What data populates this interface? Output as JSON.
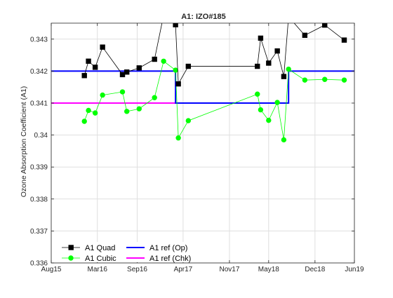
{
  "chart_data": {
    "type": "line",
    "title": "A1: IZO#185",
    "xlabel": "",
    "ylabel": "Ozone Absorption Coefficient (A1)",
    "x_axis_kind": "date",
    "xlim": [
      "2015-08-01",
      "2019-06-01"
    ],
    "ylim": [
      0.336,
      0.3435
    ],
    "x_ticks": [
      {
        "date": "2015-08-01",
        "label": "Aug15"
      },
      {
        "date": "2016-03-01",
        "label": "Mar16"
      },
      {
        "date": "2016-09-01",
        "label": "Sep16"
      },
      {
        "date": "2017-04-01",
        "label": "Apr17"
      },
      {
        "date": "2017-11-01",
        "label": "Nov17"
      },
      {
        "date": "2018-05-01",
        "label": "May18"
      },
      {
        "date": "2018-12-01",
        "label": "Dec18"
      },
      {
        "date": "2019-06-01",
        "label": "Jun19"
      }
    ],
    "y_ticks": [
      {
        "value": 0.336,
        "label": "0.336"
      },
      {
        "value": 0.337,
        "label": "0.337"
      },
      {
        "value": 0.338,
        "label": "0.338"
      },
      {
        "value": 0.339,
        "label": "0.339"
      },
      {
        "value": 0.34,
        "label": "0.34"
      },
      {
        "value": 0.341,
        "label": "0.341"
      },
      {
        "value": 0.342,
        "label": "0.342"
      },
      {
        "value": 0.343,
        "label": "0.343"
      }
    ],
    "grid": true,
    "legend_position": "bottom-left",
    "series": [
      {
        "name": "A1 Quad",
        "color": "#000000",
        "marker": "square",
        "line_width": 0.8,
        "points": [
          {
            "x": "2016-01-01",
            "y": 0.34186
          },
          {
            "x": "2016-01-20",
            "y": 0.34231
          },
          {
            "x": "2016-02-20",
            "y": 0.34212
          },
          {
            "x": "2016-03-25",
            "y": 0.34275
          },
          {
            "x": "2016-06-25",
            "y": 0.34189
          },
          {
            "x": "2016-07-15",
            "y": 0.34197
          },
          {
            "x": "2016-09-10",
            "y": 0.3421
          },
          {
            "x": "2016-11-20",
            "y": 0.34237
          },
          {
            "x": "2017-01-01",
            "y": 0.34375
          },
          {
            "x": "2017-02-25",
            "y": 0.34345
          },
          {
            "x": "2017-03-10",
            "y": 0.3416
          },
          {
            "x": "2017-04-25",
            "y": 0.34215
          },
          {
            "x": "2018-03-10",
            "y": 0.34215
          },
          {
            "x": "2018-03-25",
            "y": 0.34303
          },
          {
            "x": "2018-05-01",
            "y": 0.34225
          },
          {
            "x": "2018-06-10",
            "y": 0.34263
          },
          {
            "x": "2018-07-10",
            "y": 0.34183
          },
          {
            "x": "2018-08-01",
            "y": 0.3437
          },
          {
            "x": "2018-10-15",
            "y": 0.34312
          },
          {
            "x": "2019-01-15",
            "y": 0.34344
          },
          {
            "x": "2019-04-15",
            "y": 0.34297
          }
        ]
      },
      {
        "name": "A1 Cubic",
        "color": "#00ff00",
        "marker": "circle",
        "line_width": 0.8,
        "points": [
          {
            "x": "2016-01-01",
            "y": 0.34043
          },
          {
            "x": "2016-01-20",
            "y": 0.34077
          },
          {
            "x": "2016-02-20",
            "y": 0.34069
          },
          {
            "x": "2016-03-25",
            "y": 0.34125
          },
          {
            "x": "2016-06-25",
            "y": 0.34135
          },
          {
            "x": "2016-07-15",
            "y": 0.34074
          },
          {
            "x": "2016-09-10",
            "y": 0.34082
          },
          {
            "x": "2016-11-20",
            "y": 0.34117
          },
          {
            "x": "2017-01-01",
            "y": 0.34231
          },
          {
            "x": "2017-02-25",
            "y": 0.34203
          },
          {
            "x": "2017-03-10",
            "y": 0.33991
          },
          {
            "x": "2017-04-25",
            "y": 0.34045
          },
          {
            "x": "2018-03-10",
            "y": 0.34128
          },
          {
            "x": "2018-03-25",
            "y": 0.34079
          },
          {
            "x": "2018-05-01",
            "y": 0.34046
          },
          {
            "x": "2018-06-10",
            "y": 0.34102
          },
          {
            "x": "2018-07-10",
            "y": 0.33985
          },
          {
            "x": "2018-08-01",
            "y": 0.34206
          },
          {
            "x": "2018-10-15",
            "y": 0.34172
          },
          {
            "x": "2019-01-15",
            "y": 0.34174
          },
          {
            "x": "2019-04-15",
            "y": 0.34172
          }
        ]
      },
      {
        "name": "A1 ref (Op)",
        "color": "#0000ff",
        "marker": "none",
        "line_width": 2,
        "step": true,
        "points": [
          {
            "x": "2015-08-01",
            "y": 0.342
          },
          {
            "x": "2017-02-25",
            "y": 0.342
          },
          {
            "x": "2017-02-25",
            "y": 0.341
          },
          {
            "x": "2018-08-01",
            "y": 0.341
          },
          {
            "x": "2018-08-01",
            "y": 0.342
          },
          {
            "x": "2019-06-01",
            "y": 0.342
          }
        ]
      },
      {
        "name": "A1 ref (Chk)",
        "color": "#ff00ff",
        "marker": "none",
        "line_width": 2,
        "step": false,
        "points": [
          {
            "x": "2015-08-01",
            "y": 0.341
          },
          {
            "x": "2017-02-25",
            "y": 0.341
          }
        ]
      }
    ]
  }
}
